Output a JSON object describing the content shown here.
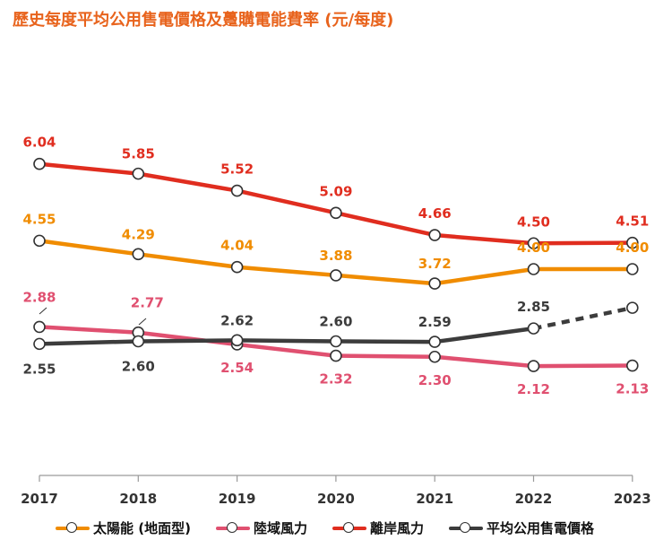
{
  "title": "歷史每度平均公用售電價格及躉購電能費率 (元/每度)",
  "chart_data": {
    "type": "line",
    "categories": [
      "2017",
      "2018",
      "2019",
      "2020",
      "2021",
      "2022",
      "2023"
    ],
    "ylim": [
      0,
      7
    ],
    "grid": false,
    "legend_position": "bottom",
    "series": [
      {
        "name": "太陽能 (地面型)",
        "color": "#f08c00",
        "values": [
          4.55,
          4.29,
          4.04,
          3.88,
          3.72,
          4.0,
          4.0
        ],
        "labels": [
          "4.55",
          "4.29",
          "4.04",
          "3.88",
          "3.72",
          "4.00",
          "4.00"
        ]
      },
      {
        "name": "陸域風力",
        "color": "#e05070",
        "values": [
          2.88,
          2.77,
          2.54,
          2.32,
          2.3,
          2.12,
          2.13
        ],
        "labels": [
          "2.88",
          "2.77",
          "2.54",
          "2.32",
          "2.30",
          "2.12",
          "2.13"
        ]
      },
      {
        "name": "離岸風力",
        "color": "#e02d1f",
        "values": [
          6.04,
          5.85,
          5.52,
          5.09,
          4.66,
          4.5,
          4.51
        ],
        "labels": [
          "6.04",
          "5.85",
          "5.52",
          "5.09",
          "4.66",
          "4.50",
          "4.51"
        ]
      },
      {
        "name": "平均公用售電價格",
        "color": "#3c3c3c",
        "values": [
          2.55,
          2.6,
          2.62,
          2.6,
          2.59,
          2.85,
          3.25
        ],
        "labels": [
          "2.55",
          "2.60",
          "2.62",
          "2.60",
          "2.59",
          "2.85",
          ""
        ]
      }
    ]
  }
}
